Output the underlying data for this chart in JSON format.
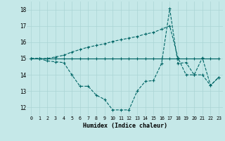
{
  "xlabel": "Humidex (Indice chaleur)",
  "bg_color": "#c5e8e8",
  "grid_color": "#aad4d4",
  "line_color": "#006666",
  "xlim": [
    -0.5,
    23.5
  ],
  "ylim": [
    11.5,
    18.5
  ],
  "yticks": [
    12,
    13,
    14,
    15,
    16,
    17,
    18
  ],
  "xticks": [
    0,
    1,
    2,
    3,
    4,
    5,
    6,
    7,
    8,
    9,
    10,
    11,
    12,
    13,
    14,
    15,
    16,
    17,
    18,
    19,
    20,
    21,
    22,
    23
  ],
  "s1_x": [
    0,
    1,
    2,
    3,
    4,
    5,
    6,
    7,
    8,
    9,
    10,
    11,
    12,
    13,
    14,
    15,
    16,
    17,
    18,
    19,
    20,
    21,
    22,
    23
  ],
  "s1_y": [
    15,
    15,
    14.85,
    14.8,
    14.75,
    14.0,
    13.3,
    13.3,
    12.75,
    12.5,
    11.85,
    11.85,
    11.85,
    13.0,
    13.6,
    13.65,
    14.7,
    18.05,
    14.7,
    14.75,
    14.0,
    15.05,
    13.35,
    13.85
  ],
  "s2_x": [
    0,
    1,
    2,
    3,
    4,
    5,
    6,
    7,
    8,
    9,
    10,
    11,
    12,
    13,
    14,
    15,
    16,
    17,
    18,
    19,
    20,
    21,
    22,
    23
  ],
  "s2_y": [
    15,
    15,
    15,
    15,
    15,
    15,
    15,
    15,
    15,
    15,
    15,
    15,
    15,
    15,
    15,
    15,
    15,
    15,
    15,
    15,
    15,
    15,
    15,
    15
  ],
  "s3_x": [
    0,
    1,
    2,
    3,
    4,
    5,
    6,
    7,
    8,
    9,
    10,
    11,
    12,
    13,
    14,
    15,
    16,
    17,
    18,
    19,
    20,
    21,
    22,
    23
  ],
  "s3_y": [
    15,
    15,
    15,
    15.1,
    15.2,
    15.4,
    15.55,
    15.7,
    15.8,
    15.9,
    16.05,
    16.15,
    16.25,
    16.35,
    16.5,
    16.6,
    16.8,
    17.0,
    15.05,
    14.0,
    14.0,
    14.0,
    13.35,
    13.85
  ]
}
